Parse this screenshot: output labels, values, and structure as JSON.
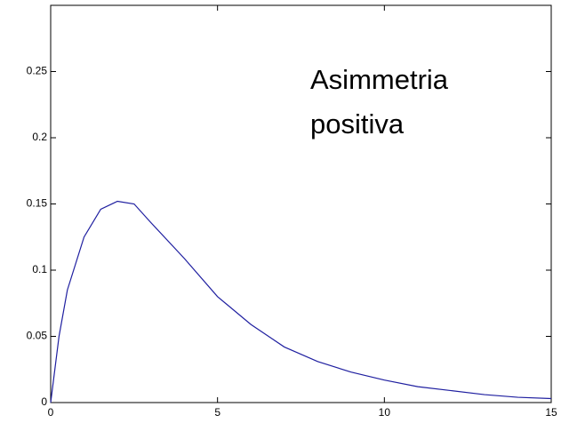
{
  "chart_data": {
    "type": "line",
    "annotation": [
      "Asimmetria",
      "positiva"
    ],
    "x": [
      0,
      0.25,
      0.5,
      1,
      1.5,
      2,
      2.5,
      3,
      4,
      5,
      6,
      7,
      8,
      9,
      10,
      11,
      12,
      13,
      14,
      15
    ],
    "series": [
      {
        "color": "#1f1fa0",
        "values": [
          0,
          0.05,
          0.085,
          0.125,
          0.146,
          0.152,
          0.15,
          0.136,
          0.109,
          0.08,
          0.059,
          0.042,
          0.031,
          0.023,
          0.017,
          0.012,
          0.009,
          0.006,
          0.004,
          0.003
        ]
      }
    ],
    "xlim": [
      0,
      15
    ],
    "xticks": [
      0,
      5,
      10,
      15
    ],
    "ylim": [
      0,
      0.3
    ],
    "yticks": [
      0,
      0.05,
      0.1,
      0.15,
      0.2,
      0.25
    ]
  }
}
